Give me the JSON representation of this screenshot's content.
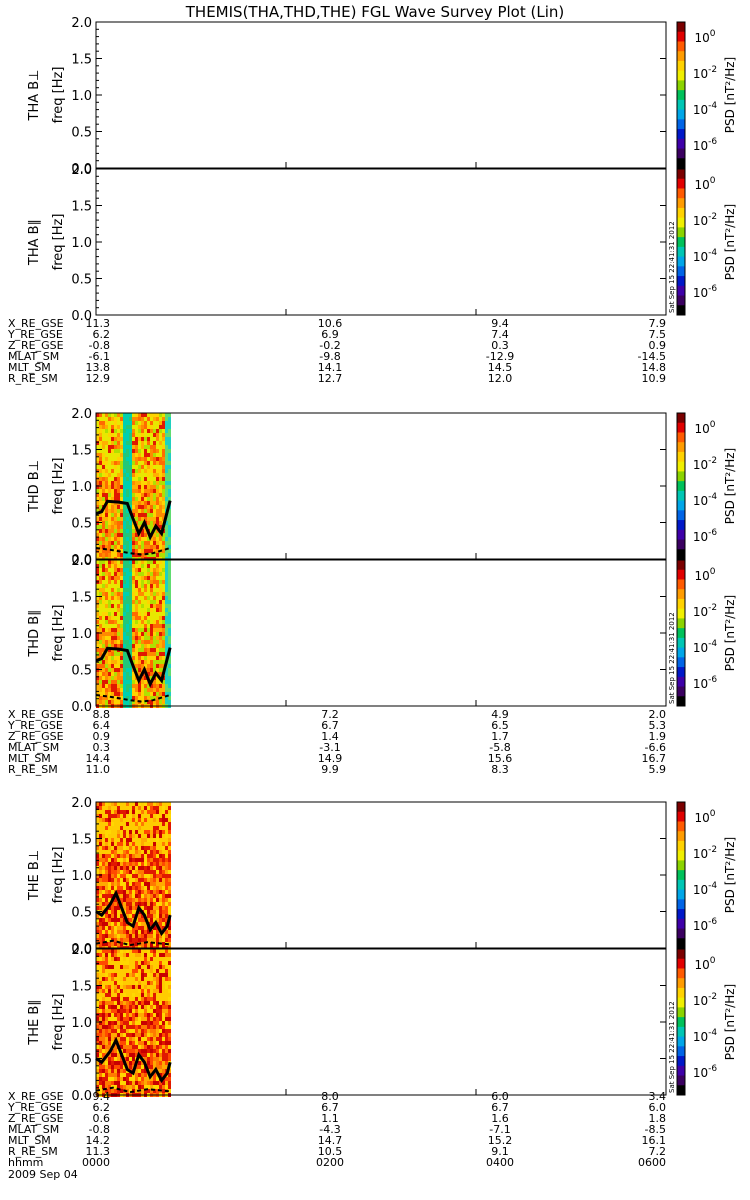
{
  "title": "THEMIS(THA,THD,THE) FGL Wave Survey Plot (Lin)",
  "colorbar": {
    "label": "PSD [nT²/Hz]",
    "ticks": [
      "10^0",
      "10^-2",
      "10^-4",
      "10^-6"
    ],
    "colors": [
      "#7a0000",
      "#e00000",
      "#ff5a00",
      "#ff9c00",
      "#ffd200",
      "#f0ef00",
      "#8bd300",
      "#00c15a",
      "#00c6b4",
      "#00a6e8",
      "#0064e6",
      "#0018c8",
      "#3e00a8",
      "#3a0060",
      "#000000"
    ],
    "stamp": "Sat Sep 15 22:41:31 2012"
  },
  "freq_axis": {
    "label": "freq [Hz]",
    "range": [
      0,
      2
    ],
    "ticks": [
      "2.0",
      "1.5",
      "1.0",
      "0.5",
      "0.0"
    ]
  },
  "groups": [
    {
      "probe": "THA",
      "panels": [
        {
          "label": "THA B⊥",
          "data_span": null
        },
        {
          "label": "THA B∥",
          "data_span": null
        }
      ],
      "ephemeris": [
        {
          "name": "X_RE_GSE",
          "values": [
            "11.3",
            "10.6",
            "9.4",
            "7.9"
          ]
        },
        {
          "name": "Y_RE_GSE",
          "values": [
            "6.2",
            "6.9",
            "7.4",
            "7.5"
          ]
        },
        {
          "name": "Z_RE_GSE",
          "values": [
            "-0.8",
            "-0.2",
            "0.3",
            "0.9"
          ]
        },
        {
          "name": "MLAT_SM",
          "values": [
            "-6.1",
            "-9.8",
            "-12.9",
            "-14.5"
          ]
        },
        {
          "name": "MLT_SM",
          "values": [
            "13.8",
            "14.1",
            "14.5",
            "14.8"
          ]
        },
        {
          "name": "R_RE_SM",
          "values": [
            "12.9",
            "12.7",
            "12.0",
            "10.9"
          ]
        }
      ]
    },
    {
      "probe": "THD",
      "panels": [
        {
          "label": "THD B⊥",
          "data_span": [
            0.0,
            0.13
          ]
        },
        {
          "label": "THD B∥",
          "data_span": [
            0.0,
            0.13
          ]
        }
      ],
      "ephemeris": [
        {
          "name": "X_RE_GSE",
          "values": [
            "8.8",
            "7.2",
            "4.9",
            "2.0"
          ]
        },
        {
          "name": "Y_RE_GSE",
          "values": [
            "6.4",
            "6.7",
            "6.5",
            "5.3"
          ]
        },
        {
          "name": "Z_RE_GSE",
          "values": [
            "0.9",
            "1.4",
            "1.7",
            "1.9"
          ]
        },
        {
          "name": "MLAT_SM",
          "values": [
            "0.3",
            "-3.1",
            "-5.8",
            "-6.6"
          ]
        },
        {
          "name": "MLT_SM",
          "values": [
            "14.4",
            "14.9",
            "15.6",
            "16.7"
          ]
        },
        {
          "name": "R_RE_SM",
          "values": [
            "11.0",
            "9.9",
            "8.3",
            "5.9"
          ]
        }
      ]
    },
    {
      "probe": "THE",
      "panels": [
        {
          "label": "THE B⊥",
          "data_span": [
            0.0,
            0.13
          ]
        },
        {
          "label": "THE B∥",
          "data_span": [
            0.0,
            0.13
          ]
        }
      ],
      "ephemeris": [
        {
          "name": "X_RE_GSE",
          "values": [
            "9.4",
            "8.0",
            "6.0",
            "3.4"
          ]
        },
        {
          "name": "Y_RE_GSE",
          "values": [
            "6.2",
            "6.7",
            "6.7",
            "6.0"
          ]
        },
        {
          "name": "Z_RE_GSE",
          "values": [
            "0.6",
            "1.1",
            "1.6",
            "1.8"
          ]
        },
        {
          "name": "MLAT_SM",
          "values": [
            "-0.8",
            "-4.3",
            "-7.1",
            "-8.5"
          ]
        },
        {
          "name": "MLT_SM",
          "values": [
            "14.2",
            "14.7",
            "15.2",
            "16.1"
          ]
        },
        {
          "name": "R_RE_SM",
          "values": [
            "11.3",
            "10.5",
            "9.1",
            "7.2"
          ]
        }
      ]
    }
  ],
  "time_axis": {
    "label": "hhmm",
    "ticks": [
      "0000",
      "0200",
      "0400",
      "0600"
    ],
    "date": "2009 Sep 04"
  },
  "chart_data": {
    "type": "heatmap",
    "title": "THEMIS(THA,THD,THE) FGL Wave Survey Plot (Lin)",
    "xlabel": "hhmm",
    "x_ticks": [
      "0000",
      "0200",
      "0400",
      "0600"
    ],
    "date": "2009 Sep 04",
    "ylabel": "freq [Hz]",
    "ylim": [
      0,
      2
    ],
    "colorbar": {
      "label": "PSD [nT²/Hz]",
      "scale": "log",
      "range": [
        1e-07,
        10
      ]
    },
    "panels": [
      {
        "probe": "THA",
        "component": "B⊥",
        "has_data": false
      },
      {
        "probe": "THA",
        "component": "B∥",
        "has_data": false
      },
      {
        "probe": "THD",
        "component": "B⊥",
        "has_data": true,
        "data_span": [
          0.0,
          0.13
        ],
        "f_ce_line": {
          "x": [
            0.0,
            0.01,
            0.02,
            0.04,
            0.055,
            0.065,
            0.075,
            0.085,
            0.095,
            0.105,
            0.115,
            0.13
          ],
          "y": [
            0.62,
            0.65,
            0.79,
            0.78,
            0.76,
            0.55,
            0.35,
            0.5,
            0.3,
            0.45,
            0.35,
            0.8
          ]
        },
        "f_low_line": {
          "x": [
            0.0,
            0.03,
            0.06,
            0.08,
            0.1,
            0.13
          ],
          "y": [
            0.15,
            0.12,
            0.08,
            0.06,
            0.08,
            0.15
          ]
        }
      },
      {
        "probe": "THD",
        "component": "B∥",
        "has_data": true,
        "data_span": [
          0.0,
          0.13
        ],
        "f_ce_line": {
          "x": [
            0.0,
            0.01,
            0.02,
            0.04,
            0.055,
            0.065,
            0.075,
            0.085,
            0.095,
            0.105,
            0.115,
            0.13
          ],
          "y": [
            0.62,
            0.65,
            0.79,
            0.78,
            0.76,
            0.55,
            0.35,
            0.5,
            0.3,
            0.45,
            0.35,
            0.8
          ]
        },
        "f_low_line": {
          "x": [
            0.0,
            0.03,
            0.06,
            0.08,
            0.1,
            0.13
          ],
          "y": [
            0.15,
            0.12,
            0.08,
            0.06,
            0.08,
            0.15
          ]
        }
      },
      {
        "probe": "THE",
        "component": "B⊥",
        "has_data": true,
        "data_span": [
          0.0,
          0.13
        ],
        "f_ce_line": {
          "x": [
            0.0,
            0.01,
            0.025,
            0.035,
            0.045,
            0.055,
            0.065,
            0.075,
            0.085,
            0.095,
            0.105,
            0.115,
            0.125,
            0.13
          ],
          "y": [
            0.5,
            0.45,
            0.6,
            0.75,
            0.55,
            0.35,
            0.3,
            0.55,
            0.45,
            0.25,
            0.35,
            0.2,
            0.3,
            0.45
          ]
        },
        "f_low_line": {
          "x": [
            0.0,
            0.03,
            0.06,
            0.09,
            0.13
          ],
          "y": [
            0.06,
            0.1,
            0.04,
            0.08,
            0.05
          ]
        }
      },
      {
        "probe": "THE",
        "component": "B∥",
        "has_data": true,
        "data_span": [
          0.0,
          0.13
        ],
        "f_ce_line": {
          "x": [
            0.0,
            0.01,
            0.025,
            0.035,
            0.045,
            0.055,
            0.065,
            0.075,
            0.085,
            0.095,
            0.105,
            0.115,
            0.125,
            0.13
          ],
          "y": [
            0.5,
            0.45,
            0.6,
            0.75,
            0.55,
            0.35,
            0.3,
            0.55,
            0.45,
            0.25,
            0.35,
            0.2,
            0.3,
            0.45
          ]
        },
        "f_low_line": {
          "x": [
            0.0,
            0.03,
            0.06,
            0.09,
            0.13
          ],
          "y": [
            0.06,
            0.1,
            0.04,
            0.08,
            0.05
          ]
        }
      }
    ]
  }
}
